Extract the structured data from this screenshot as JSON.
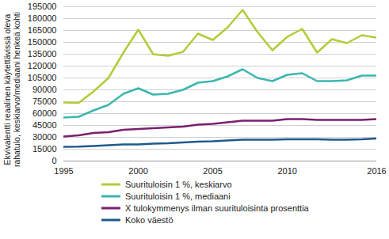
{
  "chart_data": {
    "type": "line",
    "y_label": "Ekvivalentti reaalinen käytettävissä oleva rahatulo, keskiarvo/mediaani henkeä kohti",
    "x": [
      1995,
      1996,
      1997,
      1998,
      1999,
      2000,
      2001,
      2002,
      2003,
      2004,
      2005,
      2006,
      2007,
      2008,
      2009,
      2010,
      2011,
      2012,
      2013,
      2014,
      2015,
      2016
    ],
    "series": [
      {
        "name": "Suurituloisin 1 %, keskiarvo",
        "color": "#b2cc3a",
        "values": [
          74000,
          73500,
          88000,
          105000,
          137000,
          166000,
          135000,
          133000,
          138000,
          161000,
          153000,
          169000,
          191000,
          163000,
          140000,
          157000,
          167000,
          137000,
          154000,
          149000,
          159000,
          156000
        ]
      },
      {
        "name": "Suurituloisin 1 %, mediaani",
        "color": "#3cb7b0",
        "values": [
          55000,
          56000,
          64000,
          71000,
          85000,
          92000,
          84000,
          85000,
          90000,
          99000,
          101000,
          107000,
          116000,
          105000,
          101000,
          109000,
          111000,
          101000,
          101000,
          102000,
          108000,
          108000
        ]
      },
      {
        "name": "X tulokymmenys ilman suurituloisinta prosenttia",
        "color": "#7a1f6e",
        "values": [
          31000,
          32500,
          35500,
          36500,
          39500,
          40500,
          41500,
          42500,
          43500,
          46000,
          47000,
          49000,
          51000,
          51000,
          51000,
          53000,
          53000,
          52000,
          52000,
          52000,
          52000,
          53000
        ]
      },
      {
        "name": "Koko väestö",
        "color": "#1f5a8c",
        "values": [
          18000,
          18200,
          19000,
          20000,
          21000,
          21000,
          22000,
          22500,
          23500,
          24500,
          25000,
          26000,
          27000,
          27000,
          27000,
          27500,
          27500,
          27500,
          27000,
          27000,
          27500,
          28500
        ]
      }
    ],
    "xlim": [
      1995,
      2016
    ],
    "xticks": [
      1995,
      2000,
      2005,
      2010,
      2016
    ],
    "ylim": [
      0,
      195000
    ],
    "yticks": [
      0,
      15000,
      30000,
      45000,
      60000,
      75000,
      90000,
      105000,
      120000,
      135000,
      150000,
      165000,
      180000,
      195000
    ],
    "grid": true,
    "legend": "bottom"
  }
}
